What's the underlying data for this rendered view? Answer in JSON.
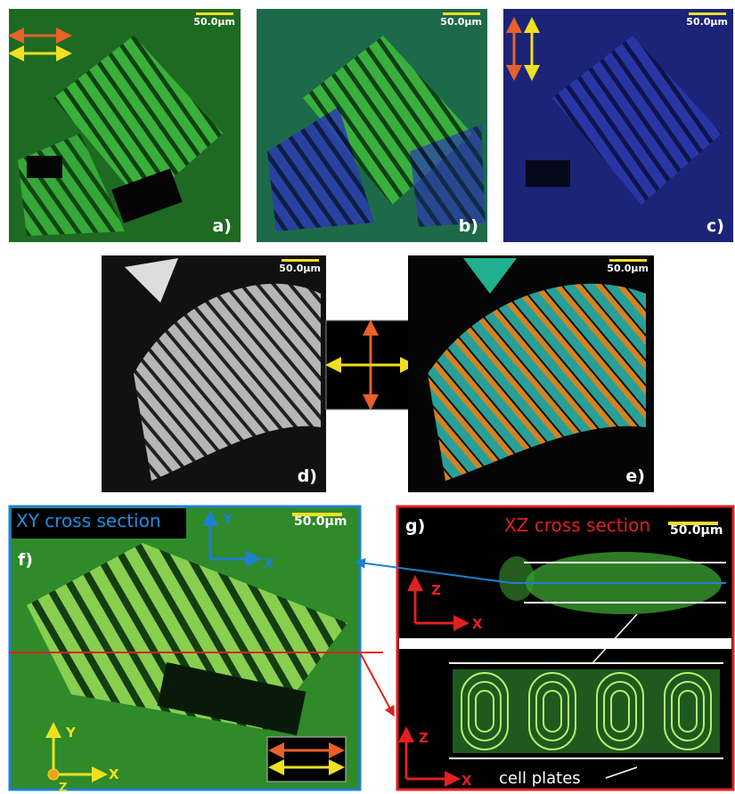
{
  "panels": [
    {
      "label": "a)",
      "scale_bar": "50.0µm"
    },
    {
      "label": "b)",
      "scale_bar": "50.0µm"
    },
    {
      "label": "c)",
      "scale_bar": "50.0µm"
    },
    {
      "label": "d)",
      "scale_bar": "50.0µm"
    },
    {
      "label": "e)",
      "scale_bar": "50.0µm"
    }
  ],
  "panel_f": {
    "label": "f)",
    "title": "XY cross section",
    "scale_bar": "50.0µm",
    "axes_top": {
      "y": "Y",
      "x": "X"
    },
    "axes_bottom": {
      "y": "Y",
      "x": "X",
      "z": "Z"
    }
  },
  "panel_g": {
    "label": "g)",
    "title": "XZ cross section",
    "scale_bar": "50.0µm",
    "axes_top": {
      "z": "Z",
      "x": "X"
    },
    "axes_bottom": {
      "z": "Z",
      "x": "X"
    },
    "annotation": "cell plates"
  }
}
